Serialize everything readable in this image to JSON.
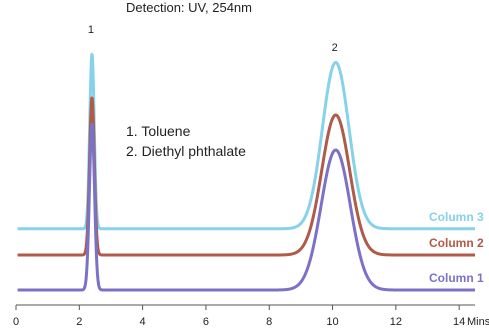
{
  "detection": "Detection: UV, 254nm",
  "peak_legend": [
    "1. Toluene",
    "2. Diethyl phthalate"
  ],
  "colors": {
    "column1": "#7b72c8",
    "column2": "#b05a48",
    "column3": "#86d2ea",
    "axis": "#555555",
    "text": "#222222"
  },
  "chart_data": {
    "type": "line",
    "title": "",
    "xlabel": "",
    "ylabel": "",
    "x_unit_label": "Mins",
    "xlim": [
      0,
      14.5
    ],
    "xticks": [
      0,
      2,
      4,
      6,
      8,
      10,
      12,
      14
    ],
    "peak_labels": [
      {
        "label": "1",
        "x": 2.4
      },
      {
        "label": "2",
        "x": 10.1
      }
    ],
    "series": [
      {
        "name": "Column 3",
        "color": "#86d2ea",
        "baseline": 0.35,
        "peaks": [
          {
            "rt": 2.4,
            "height": 1.0,
            "width": 0.07
          },
          {
            "rt": 10.1,
            "height": 0.95,
            "width": 0.42
          }
        ]
      },
      {
        "name": "Column 2",
        "color": "#b05a48",
        "baseline": 0.2,
        "peaks": [
          {
            "rt": 2.4,
            "height": 0.9,
            "width": 0.075
          },
          {
            "rt": 10.1,
            "height": 0.8,
            "width": 0.44
          }
        ]
      },
      {
        "name": "Column 1",
        "color": "#7b72c8",
        "baseline": 0.0,
        "peaks": [
          {
            "rt": 2.4,
            "height": 0.95,
            "width": 0.08
          },
          {
            "rt": 10.1,
            "height": 0.8,
            "width": 0.46
          }
        ]
      }
    ]
  }
}
